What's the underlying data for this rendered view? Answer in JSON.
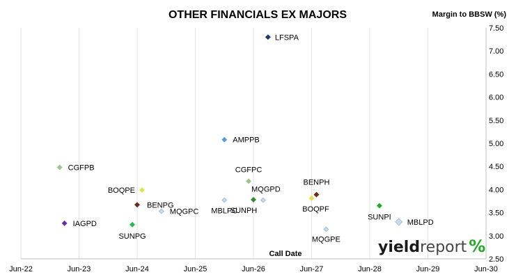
{
  "chart_data": {
    "type": "scatter",
    "title": "OTHER FINANCIALS EX MAJORS",
    "ylabel": "Margin to BBSW (%)",
    "xlabel": "Call Date",
    "x_ticks": [
      "Jun-22",
      "Jun-23",
      "Jun-24",
      "Jun-25",
      "Jun-26",
      "Jun-27",
      "Jun-28",
      "Jun-29",
      "Jun-30"
    ],
    "xlim": [
      "2022-06",
      "2030-06"
    ],
    "ylim": [
      2.5,
      7.5
    ],
    "y_ticks": [
      "2.50",
      "3.00",
      "3.50",
      "4.00",
      "4.50",
      "5.00",
      "5.50",
      "6.00",
      "6.50",
      "7.00",
      "7.50"
    ],
    "y_axis_side": "right",
    "grid": "vertical",
    "points": [
      {
        "name": "LFSPA",
        "x": "2026-09",
        "y": 7.3,
        "color": "#1f3a6b"
      },
      {
        "name": "AMPPB",
        "x": "2025-12",
        "y": 5.08,
        "color": "#5b9bd5"
      },
      {
        "name": "CGFPB",
        "x": "2023-02",
        "y": 4.48,
        "color": "#9bc48e"
      },
      {
        "name": "CGFPC",
        "x": "2026-05",
        "y": 4.18,
        "color": "#9bc48e"
      },
      {
        "name": "BOQPE",
        "x": "2024-07",
        "y": 3.99,
        "color": "#d9e84f"
      },
      {
        "name": "BENPH",
        "x": "2027-07",
        "y": 3.89,
        "color": "#6b2a1a"
      },
      {
        "name": "MQGPD",
        "x": "2026-08",
        "y": 3.77,
        "color": "#c9d9f0"
      },
      {
        "name": "BOQPF",
        "x": "2027-06",
        "y": 3.81,
        "color": "#e8e04a"
      },
      {
        "name": "MBLPC",
        "x": "2025-12",
        "y": 3.77,
        "color": "#c9d9f0"
      },
      {
        "name": "SUNPH",
        "x": "2026-06",
        "y": 3.78,
        "color": "#2e8b2e"
      },
      {
        "name": "BENPG",
        "x": "2024-06",
        "y": 3.67,
        "color": "#6b2a1a"
      },
      {
        "name": "SUNPI",
        "x": "2028-08",
        "y": 3.65,
        "color": "#22aa22"
      },
      {
        "name": "MQGPC",
        "x": "2024-11",
        "y": 3.53,
        "color": "#c9d9f0"
      },
      {
        "name": "MBLPD",
        "x": "2028-12",
        "y": 3.3,
        "color": "#c9d9f0"
      },
      {
        "name": "IAGPD",
        "x": "2023-03",
        "y": 3.27,
        "color": "#6a2aa8"
      },
      {
        "name": "SUNPG",
        "x": "2024-05",
        "y": 3.24,
        "color": "#22bb55"
      },
      {
        "name": "MQGPE",
        "x": "2027-09",
        "y": 3.14,
        "color": "#c9d9f0"
      }
    ]
  },
  "logo": {
    "bold": "yield",
    "light": "report",
    "symbol": "%",
    "colors": [
      "#22aa22",
      "#e03020"
    ]
  }
}
